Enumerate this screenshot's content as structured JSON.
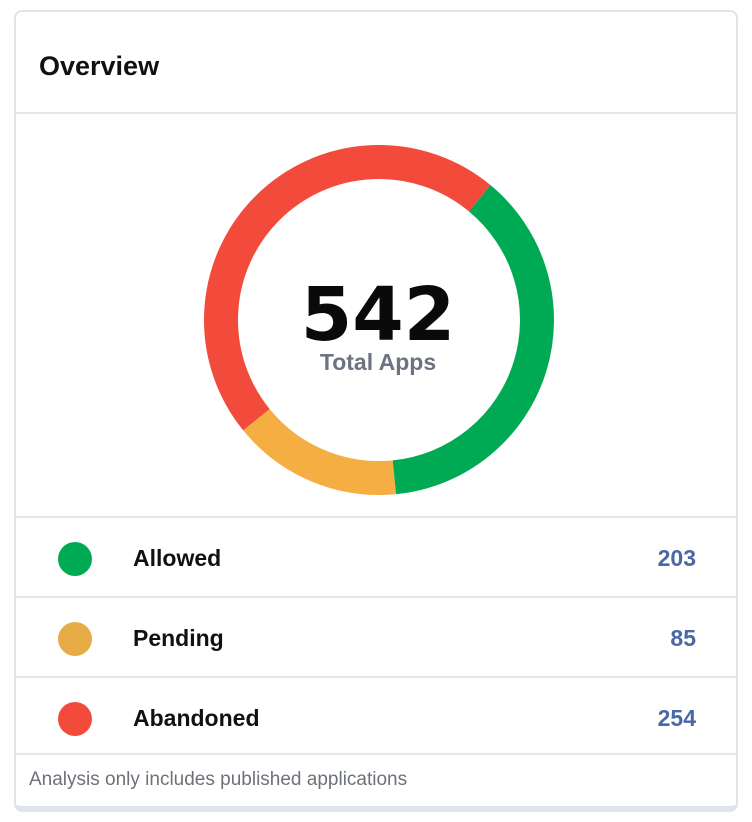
{
  "card": {
    "title": "Overview"
  },
  "chart_data": {
    "type": "pie",
    "center_value": "542",
    "center_label": "Total Apps",
    "categories": [
      "Allowed",
      "Pending",
      "Abandoned"
    ],
    "values": [
      203,
      85,
      254
    ],
    "colors": [
      "#00aa55",
      "#f4ae41",
      "#f24b3b"
    ]
  },
  "legend": [
    {
      "label": "Allowed",
      "value": "203",
      "color": "#00aa55"
    },
    {
      "label": "Pending",
      "value": "85",
      "color": "#e8ac47"
    },
    {
      "label": "Abandoned",
      "value": "254",
      "color": "#f24b3b"
    }
  ],
  "footer": {
    "note": "Analysis only includes published applications"
  }
}
